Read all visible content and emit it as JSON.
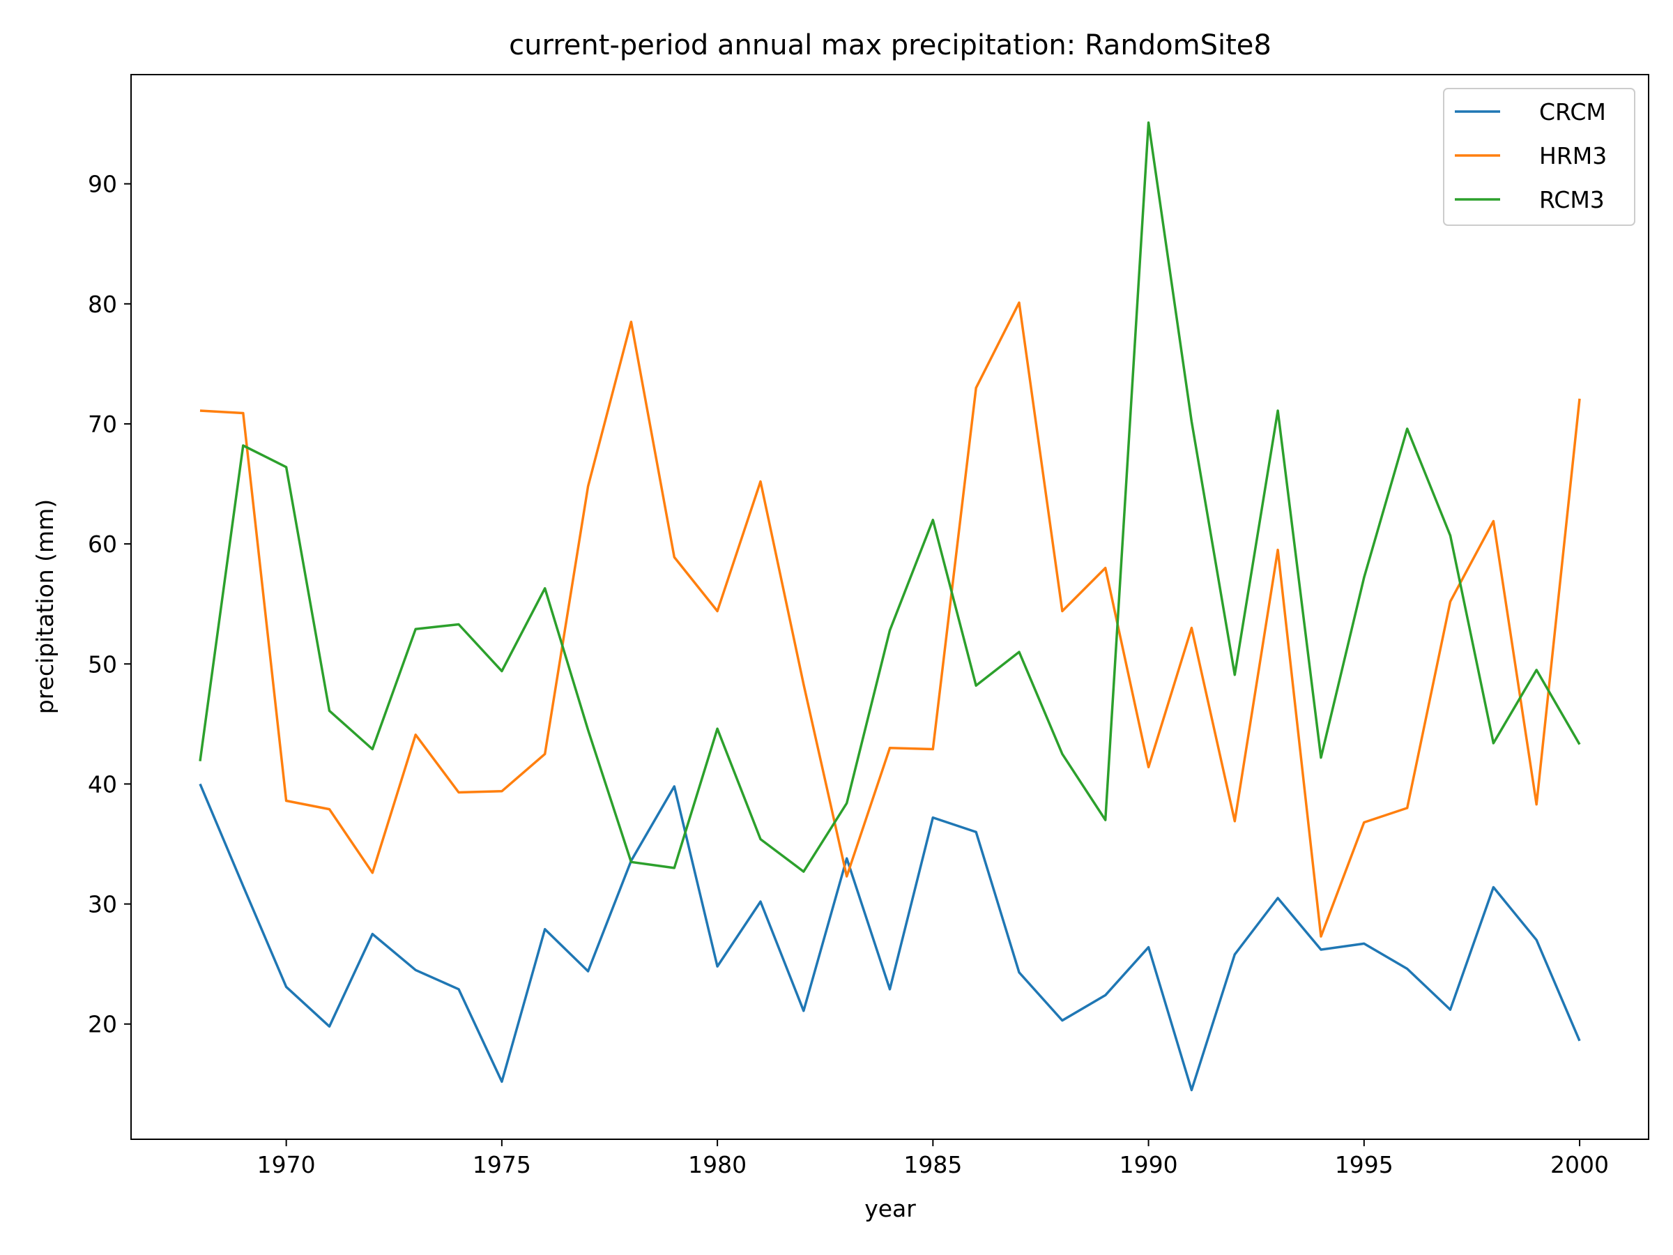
{
  "chart_data": {
    "type": "line",
    "title": "current-period annual max precipitation: RandomSite8",
    "xlabel": "year",
    "ylabel": "precipitation (mm)",
    "xlim": [
      1966.4,
      2001.6
    ],
    "ylim": [
      10.4,
      99.1
    ],
    "xticks": [
      1970,
      1975,
      1980,
      1985,
      1990,
      1995,
      2000
    ],
    "yticks": [
      20,
      30,
      40,
      50,
      60,
      70,
      80,
      90
    ],
    "grid": false,
    "legend_position": "top-right",
    "x": [
      1968,
      1969,
      1970,
      1971,
      1972,
      1973,
      1974,
      1975,
      1976,
      1977,
      1978,
      1979,
      1980,
      1981,
      1982,
      1983,
      1984,
      1985,
      1986,
      1987,
      1988,
      1989,
      1990,
      1991,
      1992,
      1993,
      1994,
      1995,
      1996,
      1997,
      1998,
      1999,
      2000
    ],
    "series": [
      {
        "name": "CRCM",
        "color": "#1f77b4",
        "values": [
          40.0,
          31.5,
          23.1,
          19.8,
          27.5,
          24.5,
          22.9,
          15.2,
          27.9,
          24.4,
          33.6,
          39.8,
          24.8,
          30.2,
          21.1,
          33.8,
          22.9,
          37.2,
          36.0,
          24.3,
          20.3,
          22.4,
          26.4,
          14.5,
          25.8,
          30.5,
          26.2,
          26.7,
          24.6,
          21.2,
          31.4,
          27.0,
          18.6
        ]
      },
      {
        "name": "HRM3",
        "color": "#ff7f0e",
        "values": [
          71.1,
          70.9,
          38.6,
          37.9,
          32.6,
          44.1,
          39.3,
          39.4,
          42.5,
          64.8,
          78.5,
          58.9,
          54.4,
          65.2,
          48.3,
          32.3,
          43.0,
          42.9,
          73.0,
          80.1,
          54.4,
          58.0,
          41.4,
          53.0,
          36.9,
          59.5,
          27.3,
          36.8,
          38.0,
          55.2,
          61.9,
          38.3,
          72.1
        ]
      },
      {
        "name": "RCM3",
        "color": "#2ca02c",
        "values": [
          41.9,
          68.2,
          66.4,
          46.1,
          42.9,
          52.9,
          53.3,
          49.4,
          56.3,
          44.5,
          33.5,
          33.0,
          44.6,
          35.4,
          32.7,
          38.4,
          52.8,
          62.0,
          48.2,
          51.0,
          42.5,
          37.0,
          95.1,
          70.2,
          49.1,
          71.1,
          42.2,
          57.2,
          69.6,
          60.7,
          43.4,
          49.5,
          43.3
        ]
      }
    ]
  }
}
